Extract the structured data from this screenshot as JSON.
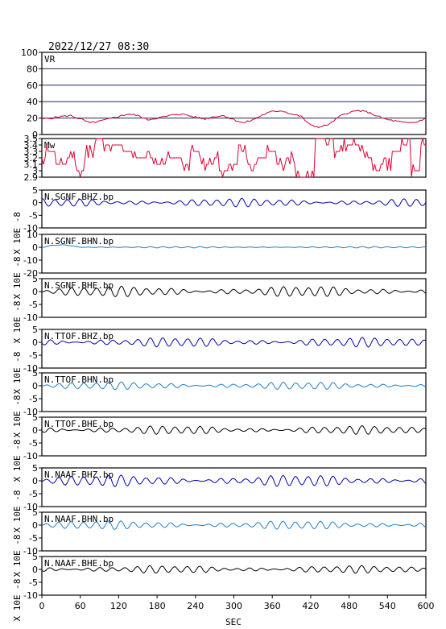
{
  "header": {
    "timestamp": "2022/12/27 08:30"
  },
  "x_axis": {
    "label": "SEC",
    "ticks": [
      0,
      60,
      120,
      180,
      240,
      300,
      360,
      420,
      480,
      540,
      600
    ],
    "range": [
      0,
      600
    ]
  },
  "unit_label": "X 10E -8",
  "colors": {
    "vr": "#cc0033",
    "mw": "#dd0033",
    "blue": "#0000aa",
    "lightblue": "#1a7fd0",
    "black": "#000000",
    "grid": "#1a2a5a"
  },
  "chart_data": [
    {
      "id": "vr",
      "type": "line",
      "label": "VR",
      "ylim": [
        0,
        100
      ],
      "yticks": [
        0,
        20,
        40,
        60,
        80,
        100
      ],
      "grid": true,
      "color": "#cc0033",
      "x": [
        0,
        15,
        30,
        45,
        60,
        75,
        90,
        105,
        120,
        135,
        150,
        165,
        180,
        195,
        210,
        225,
        240,
        255,
        270,
        285,
        300,
        315,
        330,
        345,
        360,
        375,
        390,
        405,
        420,
        435,
        450,
        465,
        480,
        495,
        510,
        525,
        540,
        555,
        570,
        585,
        600
      ],
      "y": [
        19,
        20,
        22,
        23,
        19,
        14,
        16,
        19,
        22,
        25,
        23,
        18,
        20,
        22,
        25,
        24,
        21,
        19,
        22,
        23,
        18,
        14,
        18,
        24,
        28,
        29,
        25,
        22,
        11,
        9,
        13,
        22,
        27,
        29,
        27,
        22,
        18,
        16,
        14,
        15,
        20
      ]
    },
    {
      "id": "mw",
      "type": "line",
      "label": "Mw",
      "ylim": [
        2.9,
        3.5
      ],
      "yticks": [
        2.9,
        3.0,
        3.1,
        3.2,
        3.3,
        3.4,
        3.5
      ],
      "color": "#dd0033",
      "x": [
        0,
        15,
        30,
        45,
        60,
        75,
        90,
        105,
        120,
        135,
        150,
        165,
        180,
        195,
        210,
        225,
        240,
        255,
        270,
        285,
        300,
        315,
        330,
        345,
        360,
        375,
        390,
        405,
        420,
        435,
        450,
        465,
        480,
        495,
        510,
        525,
        540,
        555,
        570,
        585,
        600
      ],
      "y": [
        3.2,
        3.3,
        3.1,
        3.2,
        3.0,
        3.3,
        3.5,
        3.4,
        3.4,
        3.3,
        3.2,
        3.3,
        3.1,
        3.2,
        3.2,
        3.1,
        3.3,
        3.1,
        3.2,
        3.0,
        3.1,
        3.3,
        3.1,
        3.2,
        3.3,
        3.1,
        3.2,
        2.9,
        2.9,
        3.5,
        3.5,
        3.3,
        3.4,
        3.4,
        3.2,
        3.0,
        3.1,
        3.3,
        3.4,
        3.0,
        3.4
      ]
    },
    {
      "id": "sgnf_bhz",
      "type": "line",
      "label": "N.SGNF.BHZ.bp",
      "ylim": [
        -10,
        5
      ],
      "yticks": [
        -10,
        -5,
        0,
        5
      ],
      "color": "#0000aa",
      "amp": 0.9,
      "seed": 3
    },
    {
      "id": "sgnf_bhn",
      "type": "line",
      "label": "N.SGNF.BHN.bp",
      "ylim": [
        -20,
        10
      ],
      "yticks": [
        -20,
        -10,
        0,
        10
      ],
      "color": "#1a7fd0",
      "amp": 0.3,
      "seed": 7
    },
    {
      "id": "sgnf_bhe",
      "type": "line",
      "label": "N.SGNF.BHE.bp",
      "ylim": [
        -10,
        5
      ],
      "yticks": [
        -10,
        -5,
        0,
        5
      ],
      "color": "#000000",
      "amp": 1.1,
      "seed": 11
    },
    {
      "id": "ttof_bhz",
      "type": "line",
      "label": "N.TTOF.BHZ.bp",
      "ylim": [
        -10,
        5
      ],
      "yticks": [
        -10,
        -5,
        0,
        5
      ],
      "color": "#0000aa",
      "amp": 1.0,
      "seed": 13
    },
    {
      "id": "ttof_bhn",
      "type": "line",
      "label": "N.TTOF.BHN.bp",
      "ylim": [
        -10,
        5
      ],
      "yticks": [
        -10,
        -5,
        0,
        5
      ],
      "color": "#1a7fd0",
      "amp": 0.8,
      "seed": 17
    },
    {
      "id": "ttof_bhe",
      "type": "line",
      "label": "N.TTOF.BHE.bp",
      "ylim": [
        -10,
        5
      ],
      "yticks": [
        -10,
        -5,
        0,
        5
      ],
      "color": "#000000",
      "amp": 0.9,
      "seed": 19
    },
    {
      "id": "naaf_bhz",
      "type": "line",
      "label": "N.NAAF.BHZ.bp",
      "ylim": [
        -10,
        5
      ],
      "yticks": [
        -10,
        -5,
        0,
        5
      ],
      "color": "#0000aa",
      "amp": 1.2,
      "seed": 23
    },
    {
      "id": "naaf_bhn",
      "type": "line",
      "label": "N.NAAF.BHN.bp",
      "ylim": [
        -10,
        5
      ],
      "yticks": [
        -10,
        -5,
        0,
        5
      ],
      "color": "#1a7fd0",
      "amp": 0.9,
      "seed": 29
    },
    {
      "id": "naaf_bhe",
      "type": "line",
      "label": "N.NAAF.BHE.bp",
      "ylim": [
        -10,
        5
      ],
      "yticks": [
        -10,
        -5,
        0,
        5
      ],
      "color": "#000000",
      "amp": 0.8,
      "seed": 31
    }
  ]
}
